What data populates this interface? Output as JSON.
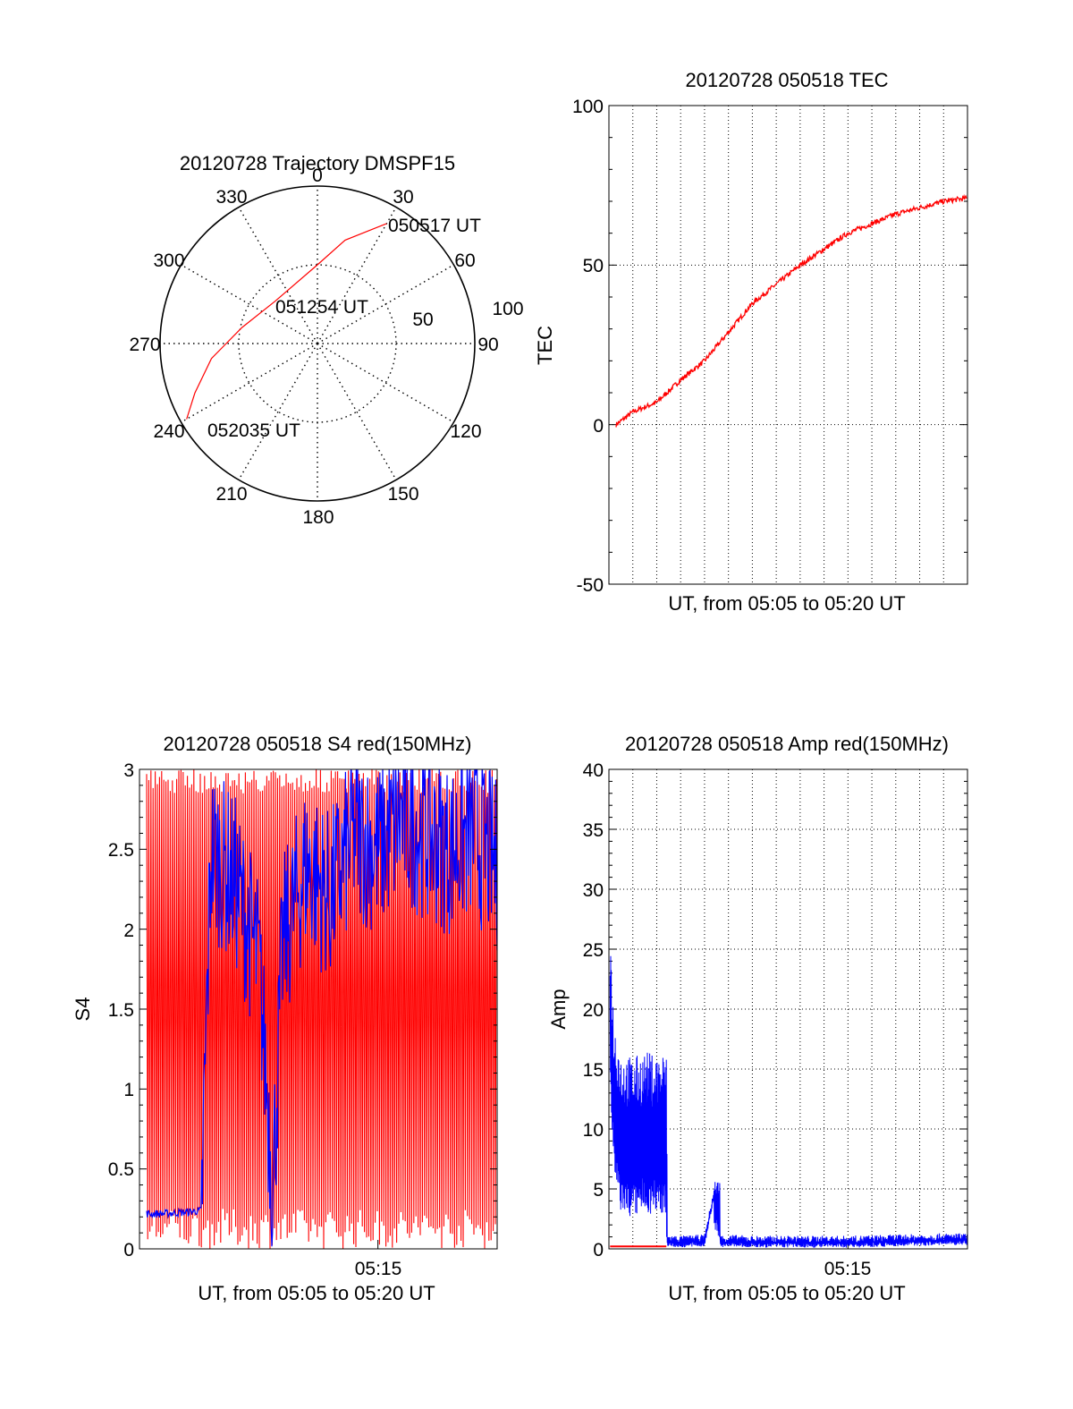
{
  "chart_data": [
    {
      "id": "trajectory",
      "type": "polar",
      "title": "20120728 Trajectory DMSPF15",
      "angle_labels": [
        "0",
        "30",
        "60",
        "90",
        "120",
        "150",
        "180",
        "210",
        "240",
        "270",
        "300",
        "330"
      ],
      "radial_labels": [
        "50",
        "100"
      ],
      "rlim": [
        0,
        100
      ],
      "grid": true,
      "series_color": "#ff0000",
      "track": [
        {
          "az": 30,
          "r": 88
        },
        {
          "az": 15,
          "r": 68
        },
        {
          "az": 0,
          "r": 50
        },
        {
          "az": 315,
          "r": 38
        },
        {
          "az": 282,
          "r": 49
        },
        {
          "az": 262,
          "r": 68
        },
        {
          "az": 248,
          "r": 84
        },
        {
          "az": 240,
          "r": 96
        }
      ],
      "annotations": [
        "050517 UT",
        "051254 UT",
        "052035 UT"
      ]
    },
    {
      "id": "tec",
      "type": "line",
      "title": "20120728 050518 TEC",
      "xlabel": "UT, from 05:05 to 05:20 UT",
      "ylabel": "TEC",
      "ylim": [
        -50,
        100
      ],
      "yticks": [
        "100",
        "50",
        "0",
        "-50"
      ],
      "grid": true,
      "series": [
        {
          "color": "#ff0000",
          "x_minutes": [
            0.3,
            1,
            2,
            3,
            4,
            5,
            6,
            7,
            8,
            9,
            10,
            11,
            12,
            13,
            14,
            15
          ],
          "values": [
            0,
            4,
            7,
            14,
            20,
            29,
            38,
            44,
            50,
            55,
            60,
            63,
            66,
            68,
            70,
            71
          ]
        }
      ]
    },
    {
      "id": "s4",
      "type": "line",
      "title": "20120728 050518 S4 red(150MHz)",
      "xlabel": "UT, from 05:05 to 05:20 UT",
      "ylabel": "S4",
      "ylim": [
        0,
        3
      ],
      "yticks": [
        "3",
        "2.5",
        "2",
        "1.5",
        "1",
        "0.5",
        "0"
      ],
      "xticks": [
        "05:15"
      ],
      "grid": false,
      "series": [
        {
          "color": "#ff0000",
          "description_values": {
            "min": 0,
            "max": 3
          }
        },
        {
          "color": "#0000ff",
          "x_minutes": [
            0.3,
            1,
            2,
            2.6,
            3,
            4,
            5,
            5.6,
            6,
            7,
            8,
            9,
            10,
            11,
            12,
            13,
            14,
            15
          ],
          "values": [
            0.22,
            0.22,
            0.23,
            0.24,
            2.5,
            2.3,
            1.8,
            0.4,
            1.9,
            2.4,
            2.2,
            2.6,
            2.5,
            2.7,
            2.6,
            2.5,
            2.6,
            2.4
          ]
        }
      ]
    },
    {
      "id": "amp",
      "type": "line",
      "title": "20120728 050518 Amp red(150MHz)",
      "xlabel": "UT, from 05:05 to 05:20 UT",
      "ylabel": "Amp",
      "ylim": [
        0,
        40
      ],
      "yticks": [
        "40",
        "35",
        "30",
        "25",
        "20",
        "15",
        "10",
        "5",
        "0"
      ],
      "xticks": [
        "05:15"
      ],
      "grid": true,
      "series": [
        {
          "color": "#0000ff",
          "x_minutes": [
            0.05,
            0.2,
            0.5,
            1,
            1.5,
            2,
            2.4,
            2.45,
            3,
            4,
            4.4,
            4.6,
            4.8,
            5,
            6,
            8,
            10,
            12,
            14,
            15
          ],
          "values": [
            20.5,
            13,
            10,
            9.5,
            10,
            9.8,
            10,
            0.6,
            0.5,
            0.6,
            4.5,
            0.7,
            0.5,
            0.6,
            0.5,
            0.5,
            0.5,
            0.6,
            0.7,
            0.7
          ]
        },
        {
          "color": "#ff0000",
          "x_minutes": [
            0.05,
            1,
            2,
            2.4
          ],
          "values": [
            0.2,
            0.2,
            0.2,
            0.2
          ]
        }
      ]
    }
  ]
}
